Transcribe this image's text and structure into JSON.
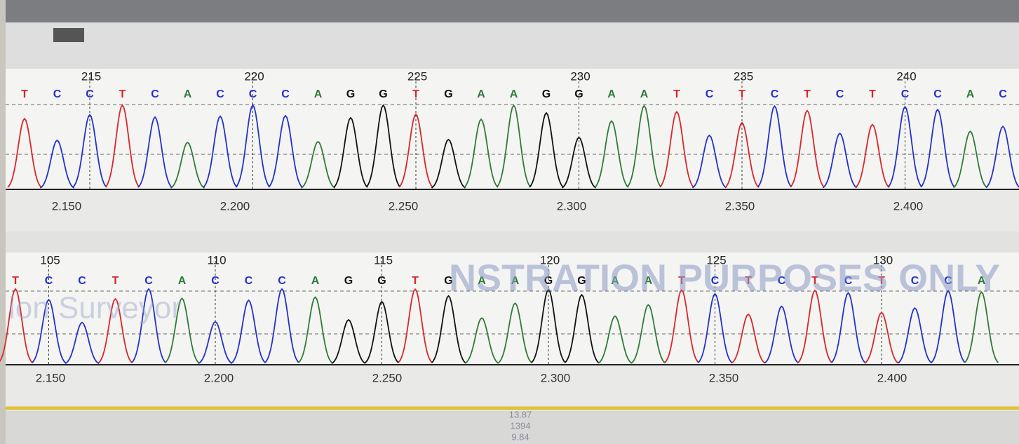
{
  "panels": [
    {
      "positions": [
        "215",
        "220",
        "225",
        "230",
        "235",
        "240"
      ],
      "bases": [
        "T",
        "C",
        "C",
        "T",
        "C",
        "A",
        "C",
        "C",
        "C",
        "A",
        "G",
        "G",
        "T",
        "G",
        "A",
        "A",
        "G",
        "G",
        "A",
        "A",
        "T",
        "C",
        "T",
        "C",
        "T",
        "C",
        "T",
        "C",
        "C",
        "A",
        "C"
      ],
      "axis_labels": [
        "2.150",
        "2.200",
        "2.250",
        "2.300",
        "2.350",
        "2.400"
      ]
    },
    {
      "positions": [
        "105",
        "110",
        "115",
        "120",
        "125",
        "130"
      ],
      "bases": [
        "T",
        "C",
        "C",
        "T",
        "C",
        "A",
        "C",
        "C",
        "C",
        "A",
        "G",
        "G",
        "T",
        "G",
        "A",
        "A",
        "G",
        "G",
        "A",
        "A",
        "T",
        "C",
        "T",
        "C",
        "T",
        "C",
        "T",
        "C",
        "C",
        "A"
      ],
      "axis_labels": [
        "2.150",
        "2.200",
        "2.250",
        "2.300",
        "2.350",
        "2.400"
      ]
    }
  ],
  "watermark": {
    "line1": "NSTRATION PURPOSES ONLY",
    "line2": "ion Surveyor"
  },
  "status_values": [
    "13.87",
    "1394",
    "9.84"
  ]
}
